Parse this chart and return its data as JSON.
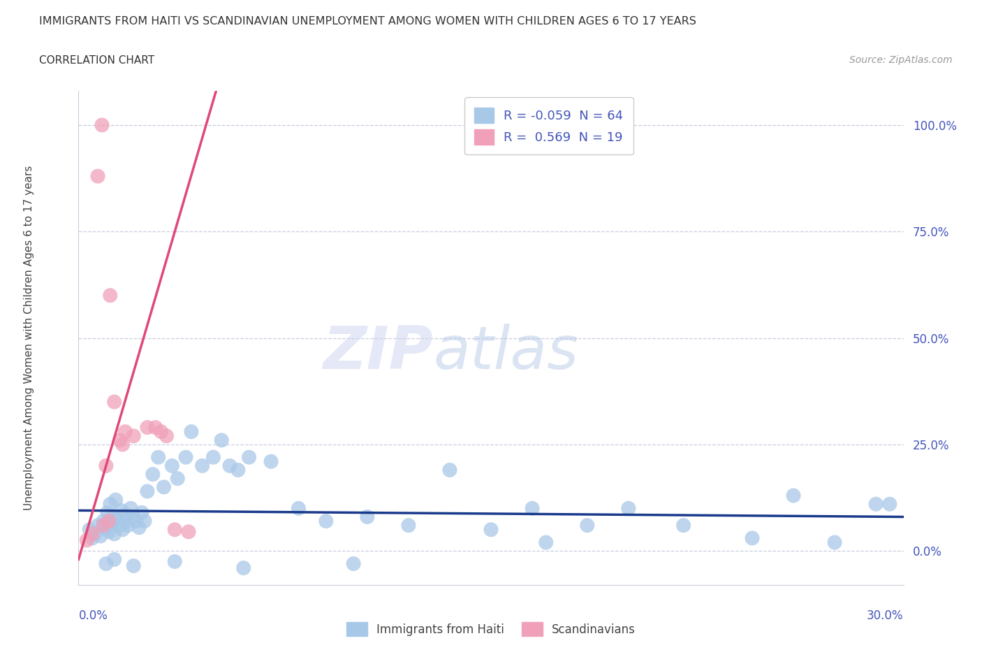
{
  "title": "IMMIGRANTS FROM HAITI VS SCANDINAVIAN UNEMPLOYMENT AMONG WOMEN WITH CHILDREN AGES 6 TO 17 YEARS",
  "subtitle": "CORRELATION CHART",
  "source": "Source: ZipAtlas.com",
  "ylabel": "Unemployment Among Women with Children Ages 6 to 17 years",
  "ytick_labels": [
    "0.0%",
    "25.0%",
    "50.0%",
    "75.0%",
    "100.0%"
  ],
  "ytick_vals": [
    0.0,
    25.0,
    50.0,
    75.0,
    100.0
  ],
  "xlim": [
    0.0,
    30.0
  ],
  "ylim": [
    -8.0,
    108.0
  ],
  "haiti_color": "#a8c8e8",
  "scand_color": "#f0a0b8",
  "haiti_line_color": "#1a3a8c",
  "scand_line_color": "#e04878",
  "axis_label_color": "#4455bb",
  "title_color": "#333333",
  "grid_color": "#c8cce0",
  "legend_haiti_r": "-0.059",
  "legend_haiti_n": "64",
  "legend_scand_r": "0.569",
  "legend_scand_n": "19",
  "haiti_x": [
    0.4,
    0.5,
    0.6,
    0.7,
    0.8,
    0.9,
    1.0,
    1.05,
    1.1,
    1.15,
    1.2,
    1.25,
    1.3,
    1.35,
    1.4,
    1.5,
    1.55,
    1.6,
    1.7,
    1.75,
    1.8,
    1.9,
    2.0,
    2.1,
    2.2,
    2.3,
    2.4,
    2.5,
    2.7,
    2.9,
    3.1,
    3.4,
    3.6,
    3.9,
    4.1,
    4.5,
    4.9,
    5.2,
    5.5,
    5.8,
    6.2,
    7.0,
    8.0,
    9.0,
    10.5,
    12.0,
    13.5,
    15.0,
    16.5,
    17.0,
    18.5,
    20.0,
    22.0,
    24.5,
    26.0,
    27.5,
    29.0,
    29.5,
    1.0,
    1.3,
    2.0,
    3.5,
    6.0,
    10.0
  ],
  "haiti_y": [
    5.0,
    3.0,
    4.0,
    6.0,
    3.5,
    7.0,
    5.5,
    9.0,
    4.5,
    11.0,
    6.5,
    8.0,
    4.0,
    12.0,
    7.5,
    6.0,
    9.5,
    5.0,
    8.5,
    7.0,
    6.0,
    10.0,
    8.0,
    7.0,
    5.5,
    9.0,
    7.0,
    14.0,
    18.0,
    22.0,
    15.0,
    20.0,
    17.0,
    22.0,
    28.0,
    20.0,
    22.0,
    26.0,
    20.0,
    19.0,
    22.0,
    21.0,
    10.0,
    7.0,
    8.0,
    6.0,
    19.0,
    5.0,
    10.0,
    2.0,
    6.0,
    10.0,
    6.0,
    3.0,
    13.0,
    2.0,
    11.0,
    11.0,
    -3.0,
    -2.0,
    -3.5,
    -2.5,
    -4.0,
    -3.0
  ],
  "scand_x": [
    0.3,
    0.5,
    0.7,
    0.85,
    1.0,
    1.15,
    1.3,
    1.5,
    1.7,
    2.0,
    2.5,
    3.0,
    3.5,
    4.0,
    3.2,
    2.8,
    1.6,
    0.9,
    1.1
  ],
  "scand_y": [
    2.5,
    4.0,
    88.0,
    100.0,
    20.0,
    60.0,
    35.0,
    26.0,
    28.0,
    27.0,
    29.0,
    28.0,
    5.0,
    4.5,
    27.0,
    29.0,
    25.0,
    6.0,
    7.0
  ],
  "haiti_reg_slope": -0.05,
  "haiti_reg_intercept": 9.5,
  "scand_reg_slope": 22.0,
  "scand_reg_intercept": -2.0
}
